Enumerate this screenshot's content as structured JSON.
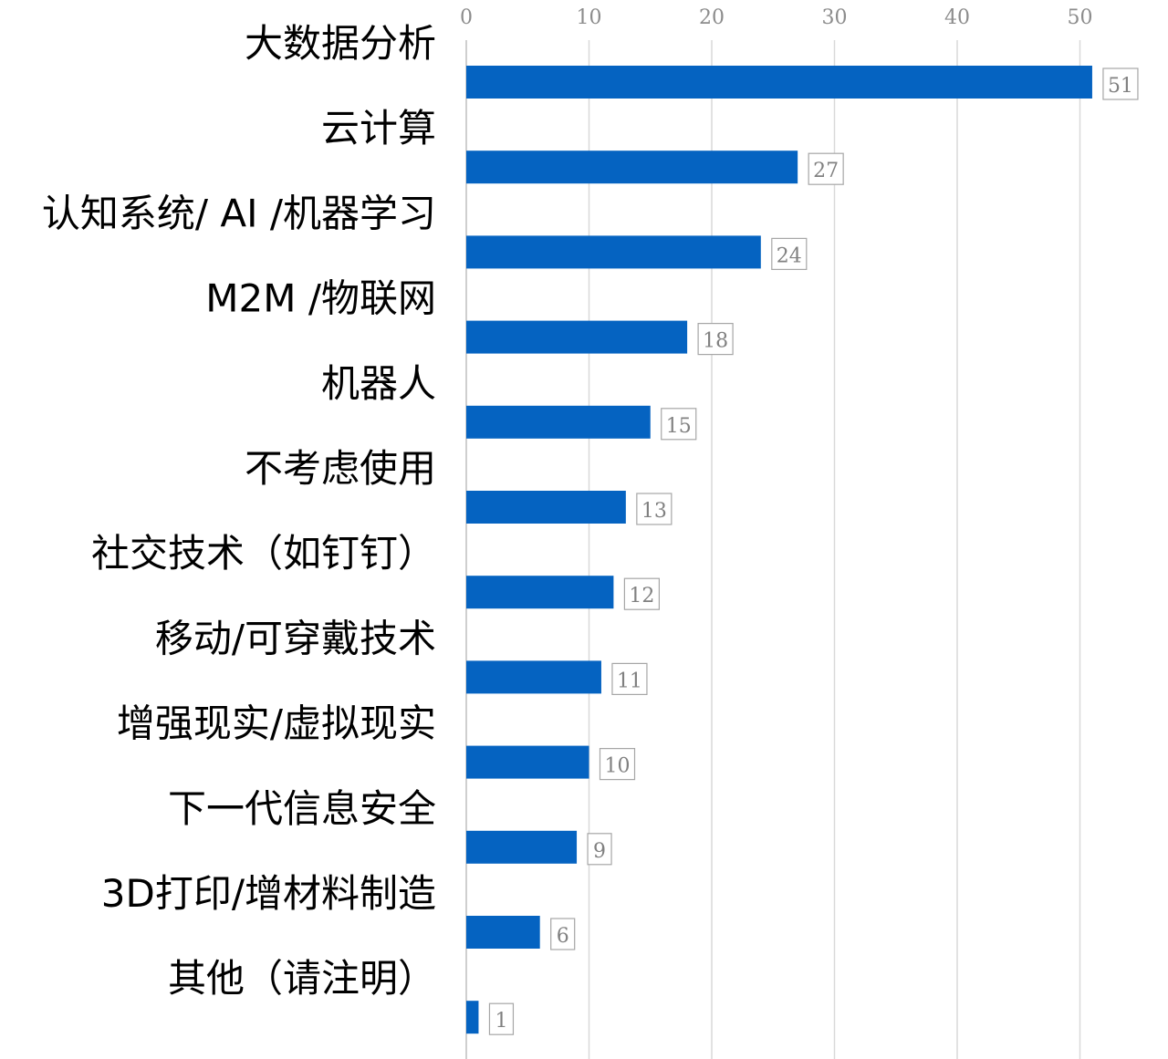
{
  "chart_data": {
    "type": "bar",
    "orientation": "horizontal",
    "categories": [
      "大数据分析",
      "云计算",
      "认知系统/ AI /机器学习",
      "M2M /物联网",
      "机器人",
      "不考虑使用",
      "社交技术（如钉钉）",
      "移动/可穿戴技术",
      "增强现实/虚拟现实",
      "下一代信息安全",
      "3D打印/增材料制造",
      "其他（请注明）"
    ],
    "values": [
      51,
      27,
      24,
      18,
      15,
      13,
      12,
      11,
      10,
      9,
      6,
      1
    ],
    "data_labels": [
      "51",
      "27",
      "24",
      "18",
      "15",
      "13",
      "12",
      "11",
      "10",
      "9",
      "6",
      "1"
    ],
    "x_ticks": [
      "0",
      "10",
      "20",
      "30",
      "40",
      "50"
    ],
    "xlim": [
      0,
      55
    ],
    "x_axis_position": "top",
    "grid": true,
    "legend": "none",
    "title": "",
    "xlabel": "",
    "ylabel": "",
    "bar_color": "#0563c1",
    "grid_color": "#d9d9d9",
    "label_color": "#000000",
    "tick_color": "#8c8c8c"
  }
}
